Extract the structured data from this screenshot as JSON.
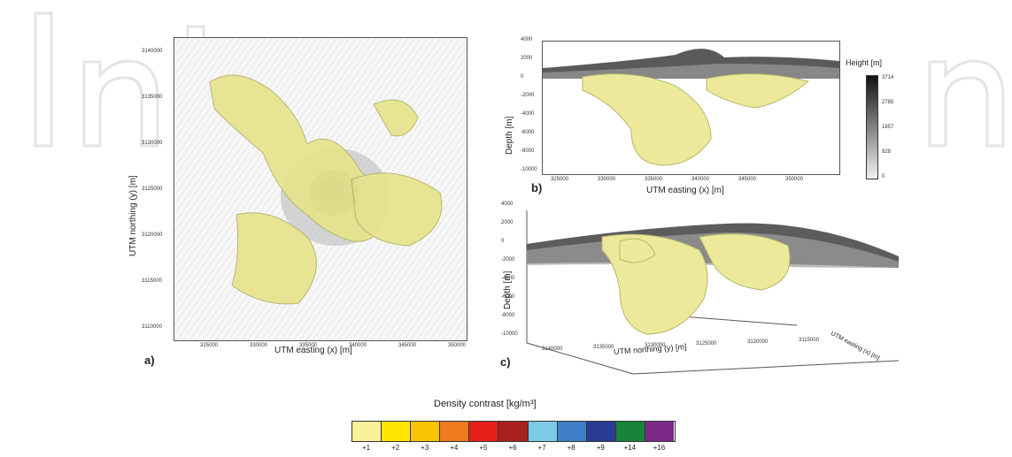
{
  "watermark": "IntechOpen",
  "panel_a": {
    "letter": "a)",
    "xlabel": "UTM easting (x) [m]",
    "ylabel": "UTM northing (y) [m]",
    "xticks": [
      "325000",
      "330000",
      "335000",
      "340000",
      "345000",
      "350000"
    ],
    "yticks": [
      "3140000",
      "3135000",
      "3130000",
      "3125000",
      "3120000",
      "3115000",
      "3110000"
    ]
  },
  "panel_b": {
    "letter": "b)",
    "xlabel": "UTM easting (x) [m]",
    "ylabel": "Depth [m]",
    "xticks": [
      "325000",
      "330000",
      "335000",
      "340000",
      "345000",
      "350000"
    ],
    "yticks": [
      "4000",
      "2000",
      "0",
      "-2000",
      "-4000",
      "-6000",
      "-8000",
      "-10000"
    ],
    "height_bar": {
      "label": "Height [m]",
      "ticks": [
        "3714",
        "2785",
        "1857",
        "928",
        "0"
      ]
    }
  },
  "panel_c": {
    "letter": "c)",
    "xlabel": "UTM northing (y) [m]",
    "ylabel": "Depth [m]",
    "yticks": [
      "4000",
      "2000",
      "0",
      "-2000",
      "-4000",
      "-6000",
      "-8000",
      "-10000"
    ],
    "xticks": [
      "3140000",
      "3135000",
      "3130000",
      "3125000",
      "3120000",
      "3115000"
    ],
    "zlabel": "UTM easting (x) [m]"
  },
  "legend": {
    "title": "Density contrast [kg/m³]",
    "items": [
      {
        "label": "+1",
        "color": "#fbf09a"
      },
      {
        "label": "+2",
        "color": "#ffe500"
      },
      {
        "label": "+3",
        "color": "#f8c300"
      },
      {
        "label": "+4",
        "color": "#f07a20"
      },
      {
        "label": "+5",
        "color": "#e8201c"
      },
      {
        "label": "+6",
        "color": "#a82020"
      },
      {
        "label": "+7",
        "color": "#7ccbe6"
      },
      {
        "label": "+8",
        "color": "#3f7fc8"
      },
      {
        "label": "+9",
        "color": "#2a3c96"
      },
      {
        "label": "+14",
        "color": "#17843a"
      },
      {
        "label": "+16",
        "color": "#7b2a8a"
      }
    ]
  },
  "colors": {
    "body_fill": "#ecea9a",
    "body_stroke": "#b8b56a"
  }
}
